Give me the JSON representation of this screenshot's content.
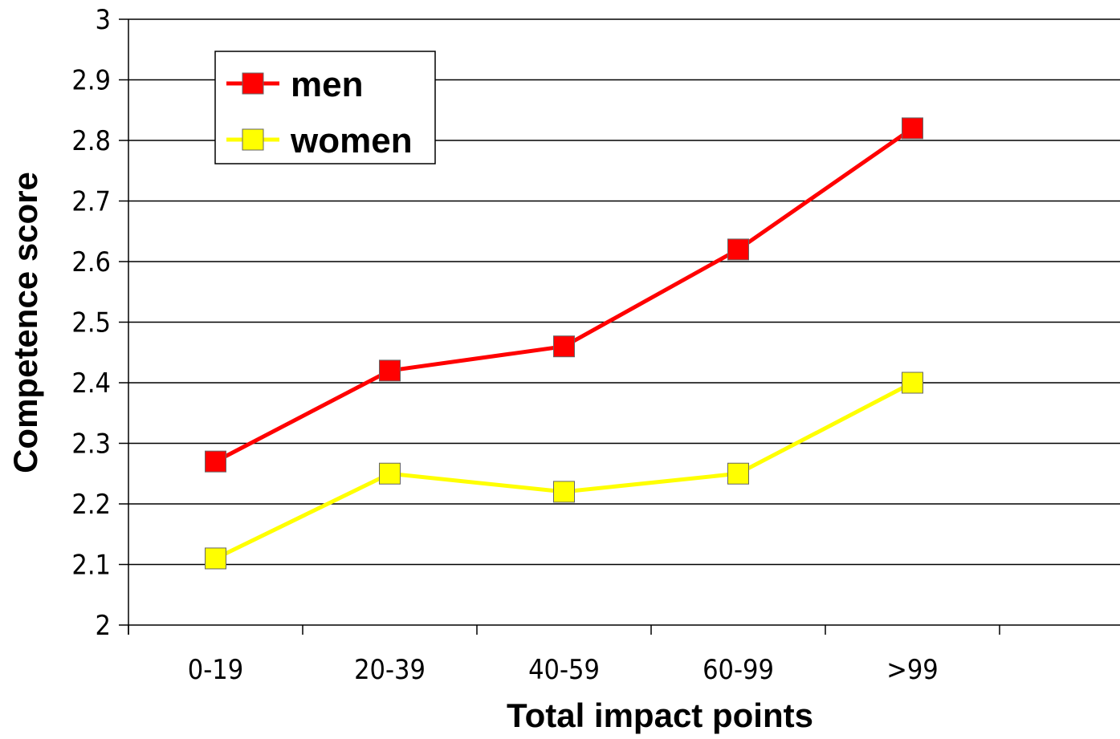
{
  "chart_data": {
    "type": "line",
    "categories": [
      "0-19",
      "20-39",
      "40-59",
      "60-99",
      ">99"
    ],
    "series": [
      {
        "name": "men",
        "color": "#ff0000",
        "values": [
          2.27,
          2.42,
          2.46,
          2.62,
          2.82
        ]
      },
      {
        "name": "women",
        "color": "#ffff00",
        "values": [
          2.11,
          2.25,
          2.22,
          2.25,
          2.4
        ]
      }
    ],
    "xlabel": "Total impact points",
    "ylabel": "Competence score",
    "ylim": [
      2,
      3
    ],
    "yticks": [
      "2",
      "2.1",
      "2.2",
      "2.3",
      "2.4",
      "2.5",
      "2.6",
      "2.7",
      "2.8",
      "2.9",
      "3"
    ],
    "grid": "horizontal",
    "legend_position": "top-left"
  }
}
